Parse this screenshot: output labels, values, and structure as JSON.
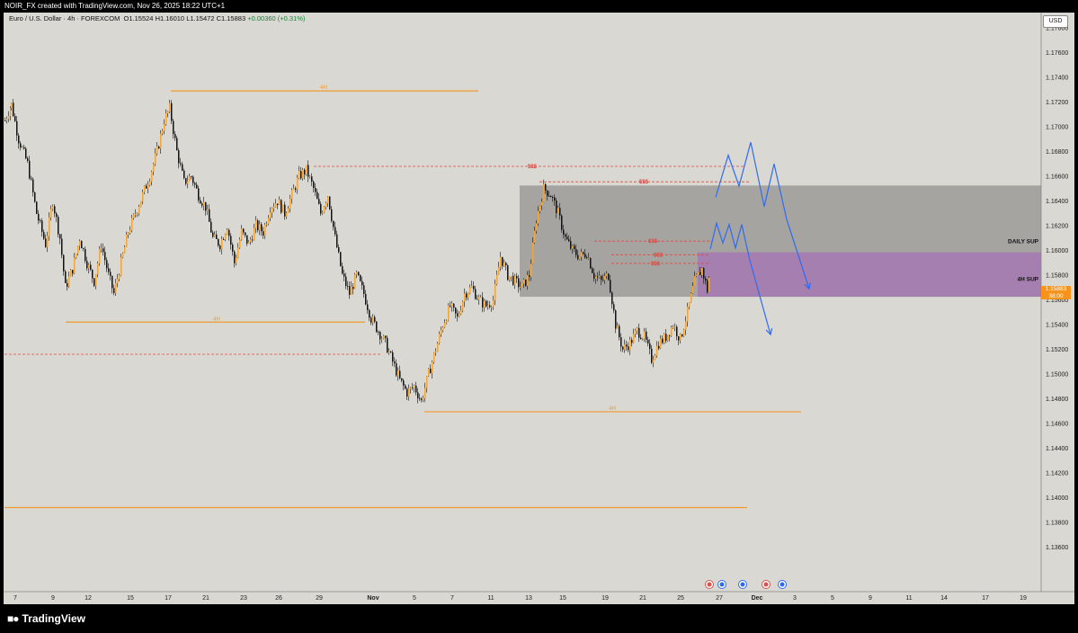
{
  "header": {
    "credit": "NOIR_FX created with TradingView.com, Nov 26, 2025 18:22 UTC+1",
    "symbol": "Euro / U.S. Dollar · 4h · FOREXCOM",
    "open": "O1.15524",
    "high": "H1.16010",
    "low": "L1.15472",
    "close": "C1.15883",
    "change": "+0.00360 (+0.31%)"
  },
  "currency": "USD",
  "last_price": {
    "price": "1.15883",
    "countdown": "38:00"
  },
  "logo": "TradingView",
  "colors": {
    "background": "#d9d8d3",
    "bull_candle": "#f0a53a",
    "bear_candle": "#111111",
    "level_line": "#f29a2e",
    "liquidity_line": "#e2473f",
    "daily_zone": "#9c9b97",
    "h4_zone": "#a57bb0",
    "projection": "#2f6bf0"
  },
  "chart_data": {
    "type": "candlestick",
    "title": "",
    "ylim": [
      1.1346,
      1.18035
    ],
    "y_ticks": [
      "1.17800",
      "1.17600",
      "1.17400",
      "1.17200",
      "1.17000",
      "1.16800",
      "1.16600",
      "1.16400",
      "1.16200",
      "1.16000",
      "1.15800",
      "1.15600",
      "1.15400",
      "1.15200",
      "1.15000",
      "1.14800",
      "1.14600",
      "1.14400",
      "1.14200",
      "1.14000",
      "1.13800",
      "1.13600"
    ],
    "x_ticks": [
      {
        "label": "7",
        "x": 17
      },
      {
        "label": "9",
        "x": 59
      },
      {
        "label": "12",
        "x": 98
      },
      {
        "label": "15",
        "x": 145
      },
      {
        "label": "17",
        "x": 187
      },
      {
        "label": "21",
        "x": 229
      },
      {
        "label": "23",
        "x": 271
      },
      {
        "label": "26",
        "x": 310
      },
      {
        "label": "29",
        "x": 355
      },
      {
        "label": "Nov",
        "x": 415,
        "bold": true
      },
      {
        "label": "5",
        "x": 461
      },
      {
        "label": "7",
        "x": 503
      },
      {
        "label": "11",
        "x": 546
      },
      {
        "label": "13",
        "x": 588
      },
      {
        "label": "15",
        "x": 626
      },
      {
        "label": "19",
        "x": 673
      },
      {
        "label": "21",
        "x": 715
      },
      {
        "label": "25",
        "x": 757
      },
      {
        "label": "27",
        "x": 800
      },
      {
        "label": "Dec",
        "x": 842,
        "bold": true
      },
      {
        "label": "3",
        "x": 884
      },
      {
        "label": "5",
        "x": 926
      },
      {
        "label": "9",
        "x": 968
      },
      {
        "label": "11",
        "x": 1011
      },
      {
        "label": "14",
        "x": 1050
      },
      {
        "label": "17",
        "x": 1096
      },
      {
        "label": "19",
        "x": 1138
      }
    ],
    "path_points": [
      [
        5,
        1.1705
      ],
      [
        12,
        1.1718
      ],
      [
        20,
        1.169
      ],
      [
        30,
        1.167
      ],
      [
        40,
        1.163
      ],
      [
        50,
        1.1605
      ],
      [
        58,
        1.164
      ],
      [
        66,
        1.161
      ],
      [
        72,
        1.157
      ],
      [
        80,
        1.1585
      ],
      [
        88,
        1.161
      ],
      [
        96,
        1.159
      ],
      [
        104,
        1.1575
      ],
      [
        112,
        1.1605
      ],
      [
        120,
        1.158
      ],
      [
        126,
        1.1565
      ],
      [
        134,
        1.159
      ],
      [
        142,
        1.1615
      ],
      [
        150,
        1.163
      ],
      [
        158,
        1.1645
      ],
      [
        166,
        1.166
      ],
      [
        174,
        1.168
      ],
      [
        182,
        1.1705
      ],
      [
        188,
        1.1715
      ],
      [
        196,
        1.168
      ],
      [
        204,
        1.1655
      ],
      [
        212,
        1.166
      ],
      [
        220,
        1.1645
      ],
      [
        228,
        1.1635
      ],
      [
        236,
        1.161
      ],
      [
        244,
        1.1605
      ],
      [
        252,
        1.162
      ],
      [
        260,
        1.159
      ],
      [
        268,
        1.1615
      ],
      [
        276,
        1.1605
      ],
      [
        284,
        1.162
      ],
      [
        292,
        1.1615
      ],
      [
        300,
        1.1635
      ],
      [
        308,
        1.164
      ],
      [
        316,
        1.163
      ],
      [
        324,
        1.1645
      ],
      [
        332,
        1.166
      ],
      [
        340,
        1.1665
      ],
      [
        348,
        1.165
      ],
      [
        356,
        1.163
      ],
      [
        364,
        1.1645
      ],
      [
        372,
        1.161
      ],
      [
        380,
        1.158
      ],
      [
        388,
        1.1565
      ],
      [
        396,
        1.158
      ],
      [
        404,
        1.1565
      ],
      [
        412,
        1.1545
      ],
      [
        420,
        1.1535
      ],
      [
        428,
        1.1525
      ],
      [
        436,
        1.151
      ],
      [
        444,
        1.1495
      ],
      [
        452,
        1.1485
      ],
      [
        460,
        1.149
      ],
      [
        468,
        1.1478
      ],
      [
        476,
        1.15
      ],
      [
        484,
        1.152
      ],
      [
        492,
        1.154
      ],
      [
        500,
        1.1555
      ],
      [
        508,
        1.1545
      ],
      [
        516,
        1.1565
      ],
      [
        524,
        1.157
      ],
      [
        532,
        1.156
      ],
      [
        540,
        1.1555
      ],
      [
        548,
        1.156
      ],
      [
        556,
        1.1595
      ],
      [
        564,
        1.158
      ],
      [
        572,
        1.1575
      ],
      [
        580,
        1.157
      ],
      [
        588,
        1.158
      ],
      [
        596,
        1.1625
      ],
      [
        604,
        1.165
      ],
      [
        612,
        1.1645
      ],
      [
        620,
        1.163
      ],
      [
        628,
        1.161
      ],
      [
        636,
        1.16
      ],
      [
        644,
        1.1595
      ],
      [
        652,
        1.1598
      ],
      [
        660,
        1.158
      ],
      [
        668,
        1.1575
      ],
      [
        676,
        1.158
      ],
      [
        684,
        1.154
      ],
      [
        692,
        1.152
      ],
      [
        700,
        1.1525
      ],
      [
        708,
        1.1535
      ],
      [
        716,
        1.153
      ],
      [
        724,
        1.1512
      ],
      [
        732,
        1.1525
      ],
      [
        740,
        1.153
      ],
      [
        748,
        1.154
      ],
      [
        756,
        1.1528
      ],
      [
        764,
        1.155
      ],
      [
        772,
        1.1575
      ],
      [
        780,
        1.1585
      ],
      [
        786,
        1.1568
      ],
      [
        790,
        1.1588
      ]
    ],
    "levels": [
      {
        "label": "4H",
        "y": 1.1729,
        "x1": 190,
        "x2": 532,
        "label_x": 360
      },
      {
        "label": "4H",
        "y": 1.1542,
        "x1": 73,
        "x2": 406,
        "label_x": 241
      },
      {
        "label": "4H",
        "y": 1.14695,
        "x1": 472,
        "x2": 891,
        "label_x": 681
      },
      {
        "label": "",
        "y": 1.1392,
        "x1": 5,
        "x2": 831,
        "label_x": 0
      }
    ],
    "liquidity": [
      {
        "label": "$$$",
        "y": 1.1668,
        "x1": 349,
        "x2": 827,
        "label_x": 592
      },
      {
        "label": "$$$",
        "y": 1.16555,
        "x1": 600,
        "x2": 835,
        "label_x": 716
      },
      {
        "label": "$$$",
        "y": 1.16075,
        "x1": 661,
        "x2": 792,
        "label_x": 726
      },
      {
        "label": "$$$",
        "y": 1.15965,
        "x1": 680,
        "x2": 790,
        "label_x": 732
      },
      {
        "label": "$$$",
        "y": 1.15895,
        "x1": 680,
        "x2": 790,
        "label_x": 729
      },
      {
        "label": "",
        "y": 1.1516,
        "x1": 5,
        "x2": 425,
        "label_x": 0
      }
    ],
    "zones": [
      {
        "label": "DAILY SUP",
        "top": 1.16525,
        "bottom": 1.15625,
        "x1": 578,
        "x2": 1158,
        "label_y": 1.16075
      },
      {
        "label": "4H SUP",
        "top": 1.15985,
        "bottom": 1.15625,
        "x1": 776,
        "x2": 1158,
        "label_y": 1.1577
      }
    ],
    "projections": [
      [
        [
          796,
          1.1643
        ],
        [
          810,
          1.1677
        ],
        [
          822,
          1.1652
        ],
        [
          835,
          1.16875
        ],
        [
          850,
          1.16355
        ],
        [
          861,
          1.167
        ],
        [
          875,
          1.1625
        ],
        [
          900,
          1.1569
        ]
      ],
      [
        [
          790,
          1.1601
        ],
        [
          797,
          1.1622
        ],
        [
          804,
          1.1606
        ],
        [
          811,
          1.1621
        ],
        [
          818,
          1.1602
        ],
        [
          825,
          1.1621
        ],
        [
          834,
          1.1592
        ],
        [
          857,
          1.1532
        ]
      ]
    ]
  }
}
